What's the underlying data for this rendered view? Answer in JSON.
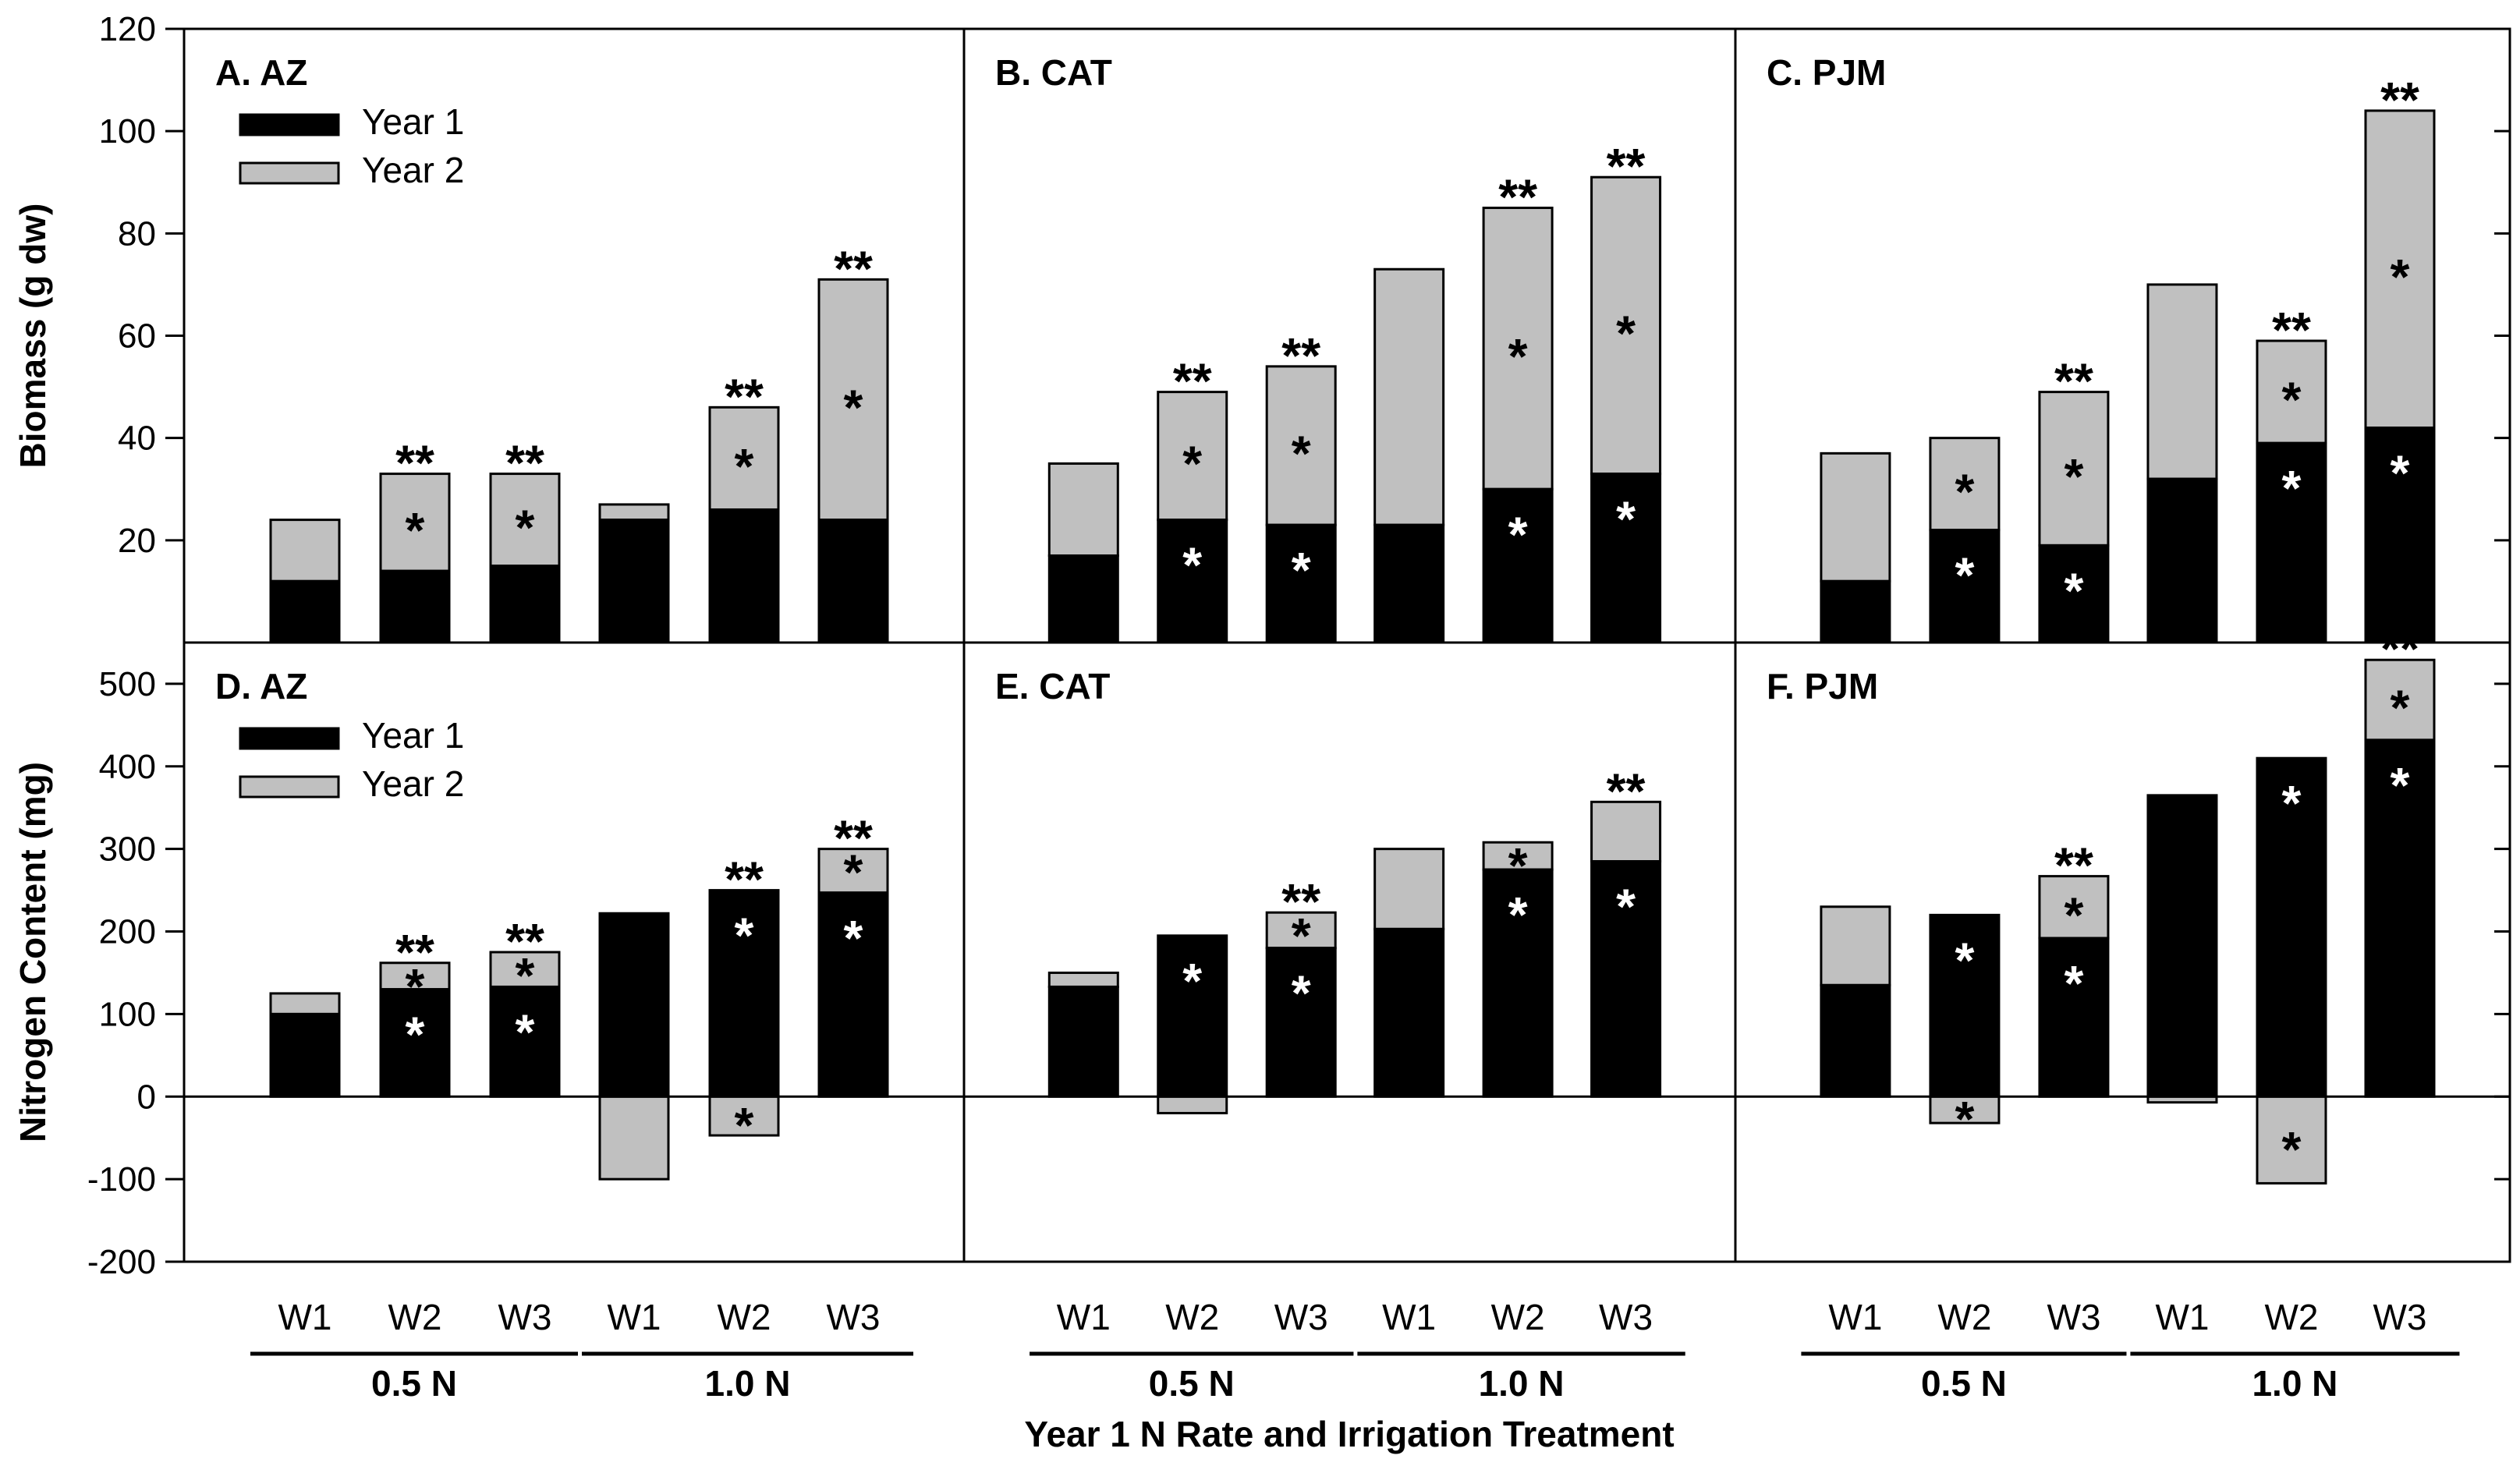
{
  "chart_data": {
    "type": "bar",
    "stacked": true,
    "xlabel": "Year 1 N Rate and Irrigation Treatment",
    "categories": [
      "W1",
      "W2",
      "W3",
      "W1",
      "W2",
      "W3"
    ],
    "groups": [
      {
        "label": "0.5 N",
        "categories": [
          "W1",
          "W2",
          "W3"
        ]
      },
      {
        "label": "1.0 N",
        "categories": [
          "W1",
          "W2",
          "W3"
        ]
      }
    ],
    "legend": [
      "Year 1",
      "Year 2"
    ],
    "colors": {
      "Year 1": "#000000",
      "Year 2": "#c0c0c0"
    },
    "legend_placement": "top-left",
    "rows": [
      {
        "ylabel": "Biomass (g dw)",
        "ylim": [
          0,
          120
        ],
        "yticks": [
          20,
          40,
          60,
          80,
          100,
          120
        ],
        "panels": [
          {
            "title": "A. AZ",
            "series": [
              {
                "name": "Year 1",
                "values": [
                  12,
                  14,
                  15,
                  24,
                  26,
                  24
                ]
              },
              {
                "name": "Year 2",
                "values": [
                  12,
                  19,
                  18,
                  3,
                  20,
                  47
                ]
              }
            ],
            "year1_marks": [
              "",
              "",
              "",
              "",
              "",
              ""
            ],
            "year2_marks": [
              "",
              "*",
              "*",
              "",
              "*",
              "*"
            ],
            "total_marks": [
              "",
              "**",
              "**",
              "",
              "**",
              "**"
            ]
          },
          {
            "title": "B. CAT",
            "series": [
              {
                "name": "Year 1",
                "values": [
                  17,
                  24,
                  23,
                  23,
                  30,
                  33
                ]
              },
              {
                "name": "Year 2",
                "values": [
                  18,
                  25,
                  31,
                  50,
                  55,
                  58
                ]
              }
            ],
            "year1_marks": [
              "",
              "*",
              "*",
              "",
              "*",
              "*"
            ],
            "year2_marks": [
              "",
              "*",
              "*",
              "",
              "*",
              "*"
            ],
            "total_marks": [
              "",
              "**",
              "**",
              "",
              "**",
              "**"
            ]
          },
          {
            "title": "C. PJM",
            "series": [
              {
                "name": "Year 1",
                "values": [
                  12,
                  22,
                  19,
                  32,
                  39,
                  42
                ]
              },
              {
                "name": "Year 2",
                "values": [
                  25,
                  18,
                  30,
                  38,
                  20,
                  62
                ]
              }
            ],
            "year1_marks": [
              "",
              "*",
              "*",
              "",
              "*",
              "*"
            ],
            "year2_marks": [
              "",
              "*",
              "*",
              "",
              "*",
              "*"
            ],
            "total_marks": [
              "",
              "",
              "**",
              "",
              "**",
              "**"
            ]
          }
        ]
      },
      {
        "ylabel": "Nitrogen Content (mg)",
        "ylim": [
          -200,
          550
        ],
        "yticks": [
          -200,
          -100,
          0,
          100,
          200,
          300,
          400,
          500
        ],
        "panels": [
          {
            "title": "D. AZ",
            "series": [
              {
                "name": "Year 1",
                "values": [
                  100,
                  130,
                  133,
                  222,
                  250,
                  247
                ]
              },
              {
                "name": "Year 2",
                "values": [
                  25,
                  32,
                  42,
                  -100,
                  -47,
                  53
                ]
              }
            ],
            "year1_marks": [
              "",
              "*",
              "*",
              "",
              "*",
              "*"
            ],
            "year2_marks": [
              "",
              "*",
              "*",
              "",
              "*",
              "*"
            ],
            "total_marks": [
              "",
              "**",
              "**",
              "",
              "**",
              "**"
            ]
          },
          {
            "title": "E. CAT",
            "series": [
              {
                "name": "Year 1",
                "values": [
                  133,
                  195,
                  180,
                  203,
                  275,
                  285
                ]
              },
              {
                "name": "Year 2",
                "values": [
                  17,
                  -20,
                  43,
                  97,
                  33,
                  72
                ]
              }
            ],
            "year1_marks": [
              "",
              "*",
              "*",
              "",
              "*",
              "*"
            ],
            "year2_marks": [
              "",
              "",
              "*",
              "",
              "*",
              ""
            ],
            "total_marks": [
              "",
              "",
              "**",
              "",
              "",
              "**"
            ]
          },
          {
            "title": "F. PJM",
            "series": [
              {
                "name": "Year 1",
                "values": [
                  135,
                  220,
                  192,
                  365,
                  410,
                  432
                ]
              },
              {
                "name": "Year 2",
                "values": [
                  95,
                  -32,
                  75,
                  -7,
                  -105,
                  97
                ]
              }
            ],
            "year1_marks": [
              "",
              "*",
              "*",
              "",
              "*",
              "*"
            ],
            "year2_marks": [
              "",
              "*",
              "*",
              "",
              "*",
              "*"
            ],
            "total_marks": [
              "",
              "",
              "**",
              "",
              "",
              "**"
            ]
          }
        ]
      }
    ]
  }
}
